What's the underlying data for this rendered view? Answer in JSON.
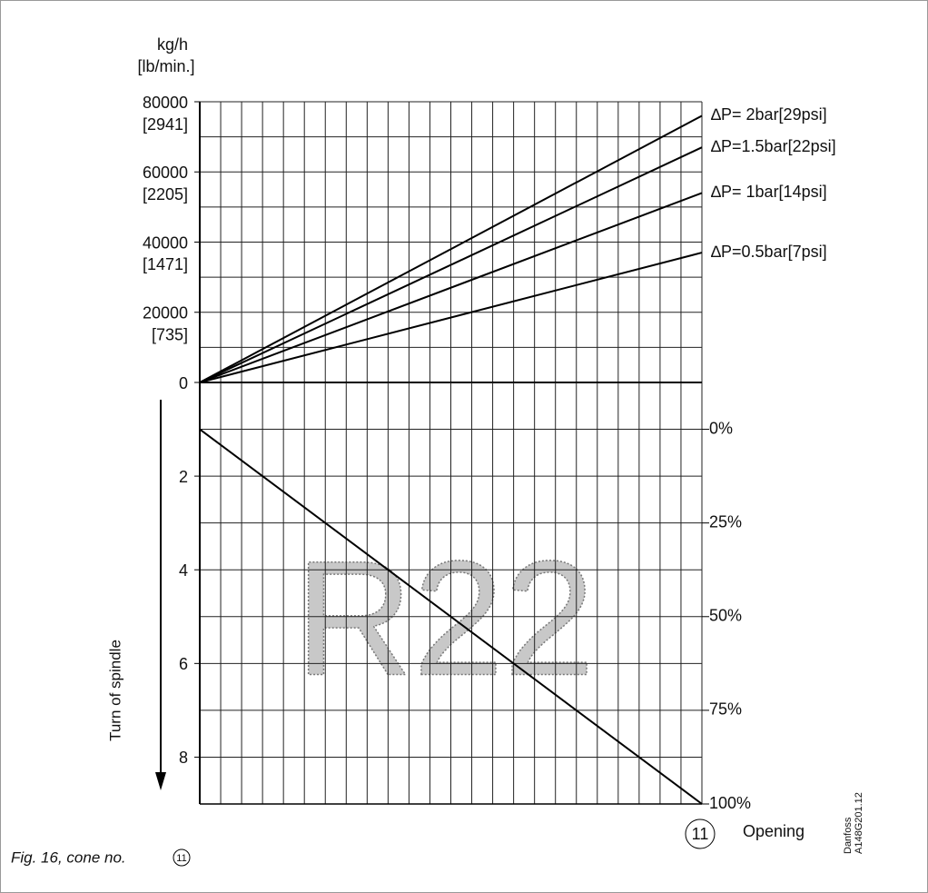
{
  "chart_data": [
    {
      "type": "line",
      "ylabel": "kg/h",
      "y2label": "[lb/min.]",
      "x": [
        0,
        100
      ],
      "xlim": [
        0,
        100
      ],
      "xticks": [
        0,
        4.1667,
        8.3333,
        12.5,
        16.6667,
        20.8333,
        25,
        29.1667,
        33.3333,
        37.5,
        41.6667,
        45.8333,
        50,
        54.1667,
        58.3333,
        62.5,
        66.6667,
        70.8333,
        75,
        79.1667,
        83.3333,
        87.5,
        91.6667,
        95.8333,
        100
      ],
      "ylim": [
        0,
        80000
      ],
      "yticks": [
        0,
        20000,
        40000,
        60000,
        80000
      ],
      "yminor": [
        10000,
        30000,
        50000,
        70000
      ],
      "y2lim": [
        0,
        2941
      ],
      "y2ticks": [
        {
          "value": 735,
          "label": "[735]"
        },
        {
          "value": 1471,
          "label": "[1471]"
        },
        {
          "value": 2205,
          "label": "[2205]"
        },
        {
          "value": 2941,
          "label": "[2941]"
        }
      ],
      "grid": true,
      "series": [
        {
          "name": "∆P= 2bar[29psi]",
          "color": "#000000",
          "values": [
            0,
            76000
          ]
        },
        {
          "name": "∆P=1.5bar[22psi]",
          "color": "#000000",
          "values": [
            0,
            67000
          ]
        },
        {
          "name": "∆P= 1bar[14psi]",
          "color": "#000000",
          "values": [
            0,
            54000
          ]
        },
        {
          "name": "∆P=0.5bar[7psi]",
          "color": "#000000",
          "values": [
            0,
            37000
          ]
        }
      ]
    },
    {
      "type": "line",
      "ylabel": "Turn of spindle",
      "xlabel": "Opening",
      "annotation": "R22",
      "x": [
        0,
        100
      ],
      "xlim": [
        0,
        100
      ],
      "xticks": [
        0,
        4.1667,
        8.3333,
        12.5,
        16.6667,
        20.8333,
        25,
        29.1667,
        33.3333,
        37.5,
        41.6667,
        45.8333,
        50,
        54.1667,
        58.3333,
        62.5,
        66.6667,
        70.8333,
        75,
        79.1667,
        83.3333,
        87.5,
        91.6667,
        95.8333,
        100
      ],
      "ylim": [
        9,
        0
      ],
      "yticks": [
        2,
        4,
        6,
        8
      ],
      "y2lim": [
        100,
        -12.5
      ],
      "y2ticks": [
        {
          "value": 0,
          "label": "0%"
        },
        {
          "value": 25,
          "label": "25%"
        },
        {
          "value": 50,
          "label": "50%"
        },
        {
          "value": 75,
          "label": "75%"
        },
        {
          "value": 100,
          "label": "100%"
        }
      ],
      "grid": true,
      "series": [
        {
          "color": "#000000",
          "values": [
            1,
            9
          ]
        }
      ]
    }
  ],
  "caption": "Fig. 16, cone no.",
  "cone": "11",
  "code": [
    "Danfoss",
    "A148G201.12"
  ]
}
